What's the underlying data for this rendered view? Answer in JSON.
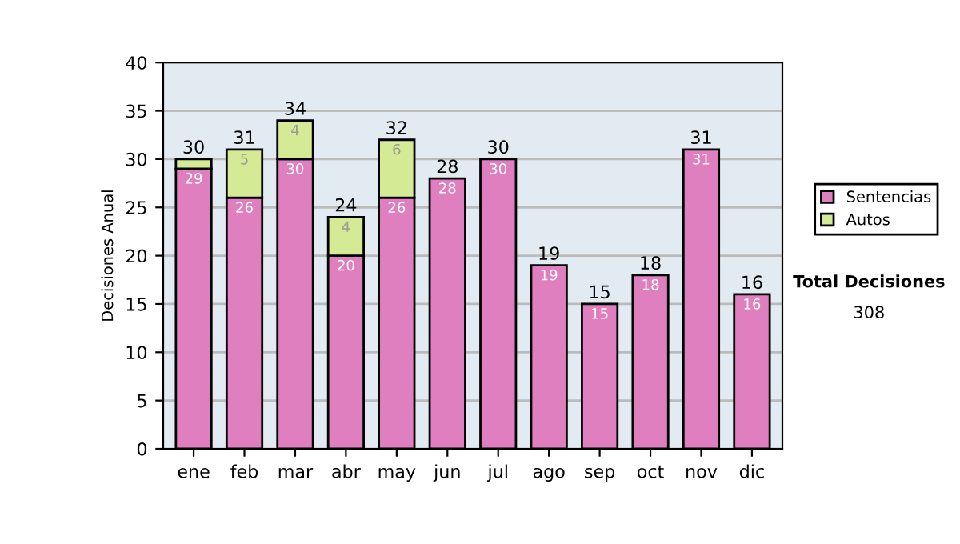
{
  "chart_data": {
    "type": "bar",
    "stacked": true,
    "ylabel": "Decisiones Anual",
    "categories": [
      "ene",
      "feb",
      "mar",
      "abr",
      "may",
      "jun",
      "jul",
      "ago",
      "sep",
      "oct",
      "nov",
      "dic"
    ],
    "series": [
      {
        "name": "Sentencias",
        "color": "#df7fbf",
        "values": [
          29,
          26,
          30,
          20,
          26,
          28,
          30,
          19,
          15,
          18,
          31,
          16
        ],
        "value_labels": [
          "29",
          "26",
          "30",
          "20",
          "26",
          "28",
          "30",
          "19",
          "15",
          "18",
          "31",
          "16"
        ]
      },
      {
        "name": "Autos",
        "color": "#d4ea94",
        "values": [
          1,
          5,
          4,
          4,
          6,
          null,
          null,
          null,
          null,
          null,
          null,
          null
        ],
        "value_labels": [
          null,
          "5",
          "4",
          "4",
          "6",
          null,
          null,
          null,
          null,
          null,
          null,
          null
        ]
      }
    ],
    "totals": [
      "30",
      "31",
      "34",
      "24",
      "32",
      "28",
      "30",
      "19",
      "15",
      "18",
      "31",
      "16"
    ],
    "ylim": [
      0,
      40
    ],
    "yticks": [
      0,
      5,
      10,
      15,
      20,
      25,
      30,
      35,
      40
    ],
    "grid": "y",
    "legend": "right",
    "annotations": [
      "Total Decisiones",
      "308"
    ]
  }
}
